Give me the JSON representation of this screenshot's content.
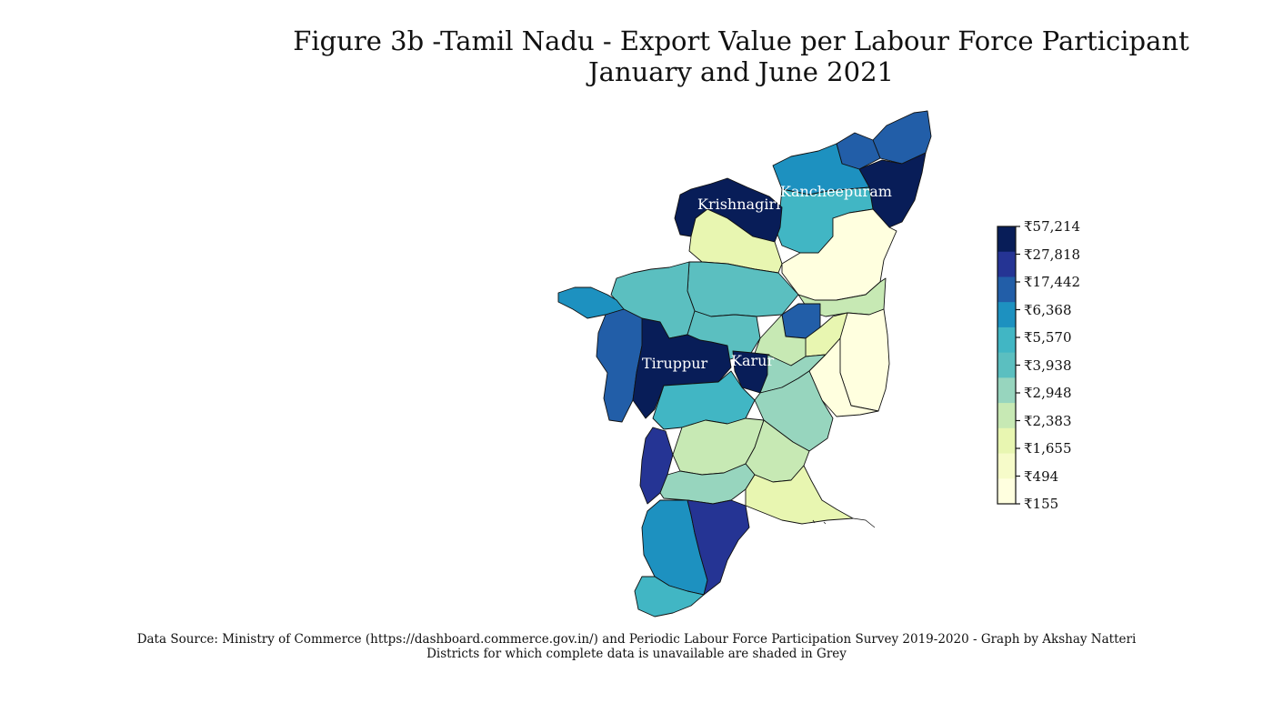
{
  "title": {
    "line1": "Figure 3b -Tamil Nadu - Export Value per Labour Force Participant",
    "line2": "January and June 2021"
  },
  "map": {
    "region": "Tamil Nadu",
    "labelled_districts": [
      "Krishnagiri",
      "Kancheepuram",
      "Tiruppur",
      "Karur"
    ]
  },
  "legend": {
    "ticks": [
      "₹57,214",
      "₹27,818",
      "₹17,442",
      "₹6,368",
      "₹5,570",
      "₹3,938",
      "₹2,948",
      "₹2,383",
      "₹1,655",
      "₹494",
      "₹155"
    ],
    "colors": [
      "#081d58",
      "#253494",
      "#225ea8",
      "#1d91c0",
      "#41b6c4",
      "#5bbfc0",
      "#97d5be",
      "#c7e9b4",
      "#e8f6b1",
      "#f6fbc9",
      "#ffffdf"
    ]
  },
  "footer": {
    "source": "Data Source:  Ministry of Commerce (https://dashboard.commerce.gov.in/) and Periodic Labour Force Participation Survey 2019-2020 - Graph by Akshay Natteri",
    "note": "Districts for which complete data is unavailable are shaded in Grey"
  }
}
